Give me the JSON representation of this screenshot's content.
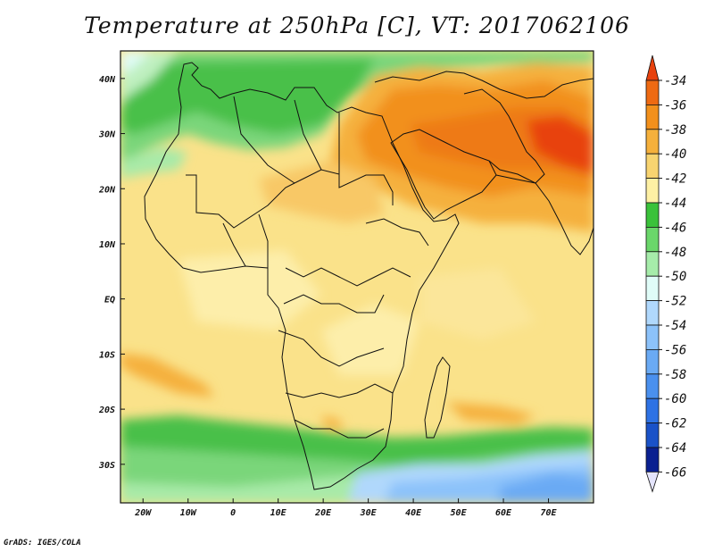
{
  "title": "Temperature at 250hPa [C], VT: 2017062106",
  "credit": "GrADS: IGES/COLA",
  "map": {
    "variable": "Temperature",
    "level": "250hPa",
    "units": "C",
    "valid_time": "2017062106",
    "lon_range": [
      -25,
      80
    ],
    "lat_range": [
      -37,
      45
    ],
    "lon_ticks": [
      "20W",
      "10W",
      "0",
      "10E",
      "20E",
      "30E",
      "40E",
      "50E",
      "60E",
      "70E"
    ],
    "lat_ticks": [
      "40N",
      "30N",
      "20N",
      "10N",
      "EQ",
      "10S",
      "20S",
      "30S"
    ]
  },
  "colorbar": {
    "labels": [
      "-34",
      "-36",
      "-38",
      "-40",
      "-42",
      "-44",
      "-46",
      "-48",
      "-50",
      "-52",
      "-54",
      "-56",
      "-58",
      "-60",
      "-62",
      "-64",
      "-66"
    ],
    "colors": [
      "#e8420e",
      "#ee6a12",
      "#f2901c",
      "#f5b03c",
      "#f8d470",
      "#fdf0a4",
      "#3ac23a",
      "#6ad66a",
      "#a6ecaa",
      "#e0fcf8",
      "#b0d8fc",
      "#8cc2fa",
      "#6aaaf4",
      "#4a90ee",
      "#2e72e4",
      "#1a52c8",
      "#0a2090",
      "#e4e4fc"
    ]
  }
}
